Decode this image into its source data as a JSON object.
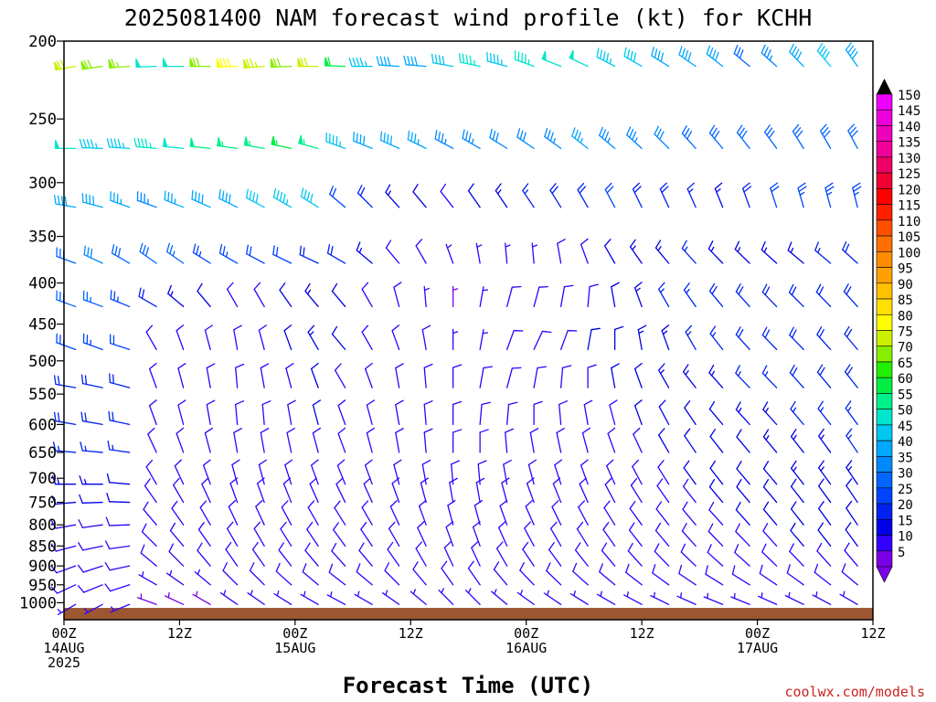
{
  "title": "2025081400 NAM forecast wind profile (kt) for KCHH",
  "xlabel": "Forecast Time (UTC)",
  "credit": "coolwx.com/models",
  "chart_data": {
    "type": "wind-barb time-height profile",
    "units": "kt",
    "y_axis": {
      "label": "",
      "quantity": "pressure (mb)",
      "scale": "log",
      "inverted": true,
      "range": [
        200,
        1050
      ],
      "ticks": [
        200,
        250,
        300,
        350,
        400,
        450,
        500,
        550,
        600,
        650,
        700,
        750,
        800,
        850,
        900,
        950,
        1000
      ]
    },
    "x_axis": {
      "range_hours": [
        0,
        84
      ],
      "ticks": [
        {
          "hour": 0,
          "lines": [
            "00Z",
            "14AUG",
            "2025"
          ]
        },
        {
          "hour": 12,
          "lines": [
            "12Z"
          ]
        },
        {
          "hour": 24,
          "lines": [
            "00Z",
            "15AUG"
          ]
        },
        {
          "hour": 36,
          "lines": [
            "12Z"
          ]
        },
        {
          "hour": 48,
          "lines": [
            "00Z",
            "16AUG"
          ]
        },
        {
          "hour": 60,
          "lines": [
            "12Z"
          ]
        },
        {
          "hour": 72,
          "lines": [
            "00Z",
            "17AUG"
          ]
        },
        {
          "hour": 84,
          "lines": [
            "12Z"
          ]
        }
      ]
    },
    "colorbar": {
      "levels": [
        5,
        10,
        15,
        20,
        25,
        30,
        35,
        40,
        45,
        50,
        55,
        60,
        65,
        70,
        75,
        80,
        85,
        90,
        95,
        100,
        105,
        110,
        115,
        120,
        125,
        130,
        135,
        140,
        145,
        150
      ],
      "colors": [
        "#7a00e6",
        "#3300ff",
        "#0000e6",
        "#0022ee",
        "#0044ff",
        "#0066ff",
        "#0088ff",
        "#00a8ff",
        "#00c8f0",
        "#00e6cc",
        "#00f08a",
        "#00ee44",
        "#22ee00",
        "#88ee00",
        "#ccf000",
        "#ffff00",
        "#ffe000",
        "#ffc000",
        "#ffa000",
        "#ff8c00",
        "#ff7000",
        "#ff5000",
        "#ff2000",
        "#ff0000",
        "#ee0033",
        "#ee0066",
        "#ee0099",
        "#ee00bb",
        "#ee00dd",
        "#ee00ff"
      ]
    },
    "terrain_color": "#9c5631",
    "surface_pressure_mb": 1015,
    "barb_series": [
      {
        "level": 215,
        "dir": [
          260,
          262,
          266,
          268,
          270,
          270,
          268,
          266,
          268,
          270,
          272,
          270,
          274,
          275,
          280,
          282,
          285,
          290,
          292,
          295,
          298,
          300,
          302,
          305,
          308,
          310,
          312,
          316,
          320,
          325
        ],
        "spd": [
          72,
          70,
          66,
          50,
          48,
          70,
          80,
          75,
          70,
          72,
          60,
          45,
          40,
          40,
          42,
          46,
          44,
          46,
          48,
          48,
          44,
          42,
          40,
          40,
          38,
          30,
          35,
          40,
          42,
          38
        ]
      },
      {
        "level": 272,
        "dir": [
          270,
          272,
          274,
          275,
          276,
          276,
          278,
          280,
          282,
          285,
          290,
          292,
          294,
          296,
          298,
          300,
          302,
          304,
          306,
          308,
          310,
          312,
          315,
          318,
          320,
          322,
          324,
          328,
          330,
          332
        ],
        "spd": [
          48,
          45,
          44,
          46,
          50,
          52,
          55,
          55,
          56,
          54,
          45,
          40,
          38,
          36,
          34,
          34,
          32,
          32,
          34,
          36,
          35,
          33,
          32,
          30,
          28,
          30,
          30,
          30,
          28,
          28
        ]
      },
      {
        "level": 322,
        "dir": [
          280,
          285,
          290,
          290,
          292,
          294,
          296,
          298,
          300,
          302,
          310,
          315,
          318,
          320,
          322,
          325,
          326,
          326,
          328,
          330,
          332,
          334,
          335,
          336,
          338,
          340,
          342,
          344,
          345,
          346
        ],
        "spd": [
          40,
          38,
          36,
          35,
          36,
          38,
          40,
          42,
          44,
          42,
          22,
          18,
          14,
          12,
          10,
          12,
          14,
          16,
          18,
          20,
          22,
          20,
          18,
          16,
          15,
          18,
          22,
          24,
          24,
          25
        ]
      },
      {
        "level": 378,
        "dir": [
          290,
          295,
          300,
          305,
          305,
          302,
          300,
          298,
          296,
          295,
          300,
          310,
          320,
          330,
          340,
          350,
          355,
          355,
          350,
          340,
          330,
          325,
          320,
          318,
          316,
          314,
          312,
          310,
          310,
          312
        ],
        "spd": [
          30,
          32,
          30,
          28,
          26,
          25,
          24,
          22,
          22,
          20,
          18,
          14,
          10,
          8,
          6,
          6,
          6,
          6,
          8,
          10,
          12,
          14,
          15,
          16,
          15,
          14,
          14,
          15,
          16,
          18
        ]
      },
      {
        "level": 428,
        "dir": [
          290,
          290,
          292,
          300,
          310,
          320,
          330,
          330,
          325,
          320,
          320,
          330,
          345,
          355,
          0,
          10,
          15,
          15,
          10,
          5,
          350,
          340,
          330,
          325,
          320,
          318,
          316,
          315,
          316,
          318
        ],
        "spd": [
          28,
          26,
          24,
          18,
          14,
          12,
          10,
          10,
          12,
          14,
          12,
          10,
          8,
          6,
          5,
          6,
          8,
          10,
          10,
          10,
          12,
          14,
          16,
          17,
          18,
          18,
          18,
          19,
          20,
          20
        ]
      },
      {
        "level": 484,
        "dir": [
          290,
          290,
          288,
          330,
          340,
          345,
          350,
          345,
          340,
          330,
          320,
          330,
          340,
          350,
          0,
          10,
          20,
          25,
          20,
          10,
          0,
          350,
          340,
          330,
          322,
          318,
          316,
          316,
          318,
          320
        ],
        "spd": [
          24,
          24,
          22,
          8,
          8,
          8,
          8,
          10,
          12,
          14,
          12,
          10,
          8,
          8,
          6,
          6,
          8,
          8,
          10,
          12,
          12,
          14,
          14,
          16,
          16,
          18,
          18,
          18,
          20,
          20
        ]
      },
      {
        "level": 540,
        "dir": [
          280,
          282,
          285,
          340,
          345,
          350,
          355,
          350,
          345,
          340,
          330,
          340,
          350,
          355,
          0,
          10,
          15,
          10,
          5,
          0,
          350,
          340,
          330,
          322,
          318,
          316,
          316,
          318,
          320,
          322
        ],
        "spd": [
          20,
          20,
          20,
          8,
          8,
          8,
          8,
          10,
          10,
          12,
          10,
          10,
          8,
          8,
          8,
          8,
          8,
          8,
          10,
          10,
          12,
          12,
          14,
          14,
          14,
          16,
          16,
          18,
          18,
          18
        ]
      },
      {
        "level": 600,
        "dir": [
          280,
          280,
          282,
          340,
          345,
          350,
          355,
          355,
          350,
          345,
          340,
          345,
          350,
          355,
          0,
          5,
          5,
          0,
          355,
          350,
          345,
          340,
          332,
          326,
          320,
          318,
          318,
          320,
          322,
          324
        ],
        "spd": [
          18,
          18,
          18,
          8,
          8,
          8,
          10,
          10,
          10,
          12,
          10,
          10,
          10,
          10,
          10,
          10,
          10,
          10,
          10,
          10,
          10,
          12,
          12,
          12,
          12,
          14,
          14,
          16,
          16,
          16
        ]
      },
      {
        "level": 650,
        "dir": [
          275,
          275,
          278,
          335,
          340,
          345,
          350,
          350,
          348,
          345,
          340,
          345,
          350,
          355,
          0,
          0,
          355,
          350,
          348,
          345,
          340,
          335,
          330,
          326,
          322,
          320,
          320,
          322,
          324,
          326
        ],
        "spd": [
          16,
          16,
          16,
          8,
          8,
          8,
          10,
          10,
          10,
          10,
          10,
          10,
          10,
          10,
          10,
          10,
          10,
          10,
          10,
          10,
          10,
          10,
          12,
          12,
          12,
          12,
          14,
          14,
          14,
          16
        ]
      },
      {
        "level": 712,
        "dir": [
          270,
          270,
          275,
          330,
          335,
          340,
          345,
          345,
          342,
          340,
          338,
          340,
          345,
          350,
          355,
          355,
          350,
          345,
          342,
          340,
          336,
          332,
          328,
          324,
          322,
          320,
          320,
          322,
          324,
          326
        ],
        "spd": [
          14,
          14,
          12,
          8,
          8,
          8,
          10,
          10,
          10,
          10,
          10,
          10,
          10,
          10,
          10,
          10,
          10,
          10,
          10,
          10,
          10,
          10,
          10,
          12,
          12,
          12,
          12,
          14,
          14,
          14
        ]
      },
      {
        "level": 750,
        "dir": [
          265,
          268,
          272,
          325,
          330,
          335,
          340,
          340,
          338,
          336,
          334,
          336,
          340,
          345,
          350,
          350,
          345,
          340,
          338,
          336,
          332,
          328,
          325,
          322,
          320,
          320,
          320,
          322,
          324,
          326
        ],
        "spd": [
          12,
          12,
          12,
          8,
          8,
          8,
          10,
          10,
          10,
          10,
          10,
          10,
          10,
          10,
          10,
          10,
          10,
          10,
          10,
          10,
          10,
          10,
          10,
          10,
          12,
          12,
          12,
          12,
          12,
          12
        ]
      },
      {
        "level": 800,
        "dir": [
          260,
          262,
          268,
          320,
          325,
          330,
          335,
          335,
          332,
          330,
          328,
          330,
          335,
          340,
          345,
          345,
          340,
          336,
          334,
          332,
          328,
          324,
          322,
          320,
          318,
          318,
          320,
          322,
          324,
          326
        ],
        "spd": [
          10,
          10,
          10,
          8,
          8,
          8,
          10,
          10,
          10,
          10,
          10,
          10,
          10,
          10,
          10,
          10,
          10,
          10,
          10,
          10,
          10,
          10,
          10,
          10,
          10,
          12,
          12,
          12,
          12,
          12
        ]
      },
      {
        "level": 850,
        "dir": [
          255,
          258,
          262,
          315,
          320,
          325,
          330,
          330,
          328,
          326,
          324,
          326,
          330,
          335,
          340,
          340,
          336,
          332,
          330,
          328,
          325,
          322,
          320,
          318,
          316,
          316,
          318,
          320,
          322,
          324
        ],
        "spd": [
          10,
          10,
          10,
          8,
          8,
          8,
          8,
          10,
          10,
          10,
          10,
          10,
          10,
          10,
          10,
          10,
          10,
          10,
          10,
          10,
          10,
          10,
          10,
          10,
          10,
          10,
          10,
          12,
          12,
          12
        ]
      },
      {
        "level": 900,
        "dir": [
          250,
          252,
          258,
          310,
          315,
          320,
          325,
          325,
          322,
          320,
          318,
          320,
          325,
          330,
          335,
          335,
          330,
          326,
          324,
          322,
          320,
          318,
          316,
          314,
          312,
          312,
          314,
          316,
          318,
          320
        ],
        "spd": [
          10,
          10,
          10,
          8,
          8,
          8,
          8,
          8,
          8,
          10,
          10,
          10,
          10,
          10,
          10,
          10,
          10,
          10,
          10,
          10,
          10,
          10,
          10,
          10,
          10,
          10,
          10,
          10,
          10,
          10
        ]
      },
      {
        "level": 950,
        "dir": [
          245,
          248,
          252,
          300,
          305,
          310,
          315,
          315,
          312,
          310,
          308,
          310,
          315,
          320,
          325,
          325,
          320,
          316,
          314,
          312,
          310,
          308,
          306,
          304,
          302,
          302,
          304,
          306,
          308,
          310
        ],
        "spd": [
          8,
          8,
          8,
          6,
          6,
          6,
          8,
          8,
          8,
          8,
          8,
          8,
          8,
          8,
          8,
          8,
          8,
          8,
          8,
          8,
          8,
          8,
          8,
          8,
          8,
          8,
          8,
          8,
          8,
          8
        ]
      },
      {
        "level": 1005,
        "dir": [
          240,
          242,
          248,
          290,
          295,
          300,
          305,
          305,
          302,
          300,
          298,
          300,
          305,
          310,
          315,
          315,
          310,
          306,
          304,
          302,
          300,
          298,
          296,
          294,
          292,
          292,
          294,
          296,
          298,
          300
        ],
        "spd": [
          6,
          6,
          6,
          5,
          5,
          5,
          6,
          6,
          6,
          6,
          6,
          6,
          6,
          6,
          6,
          6,
          6,
          6,
          6,
          6,
          6,
          6,
          6,
          6,
          6,
          6,
          6,
          6,
          6,
          6
        ]
      }
    ]
  }
}
